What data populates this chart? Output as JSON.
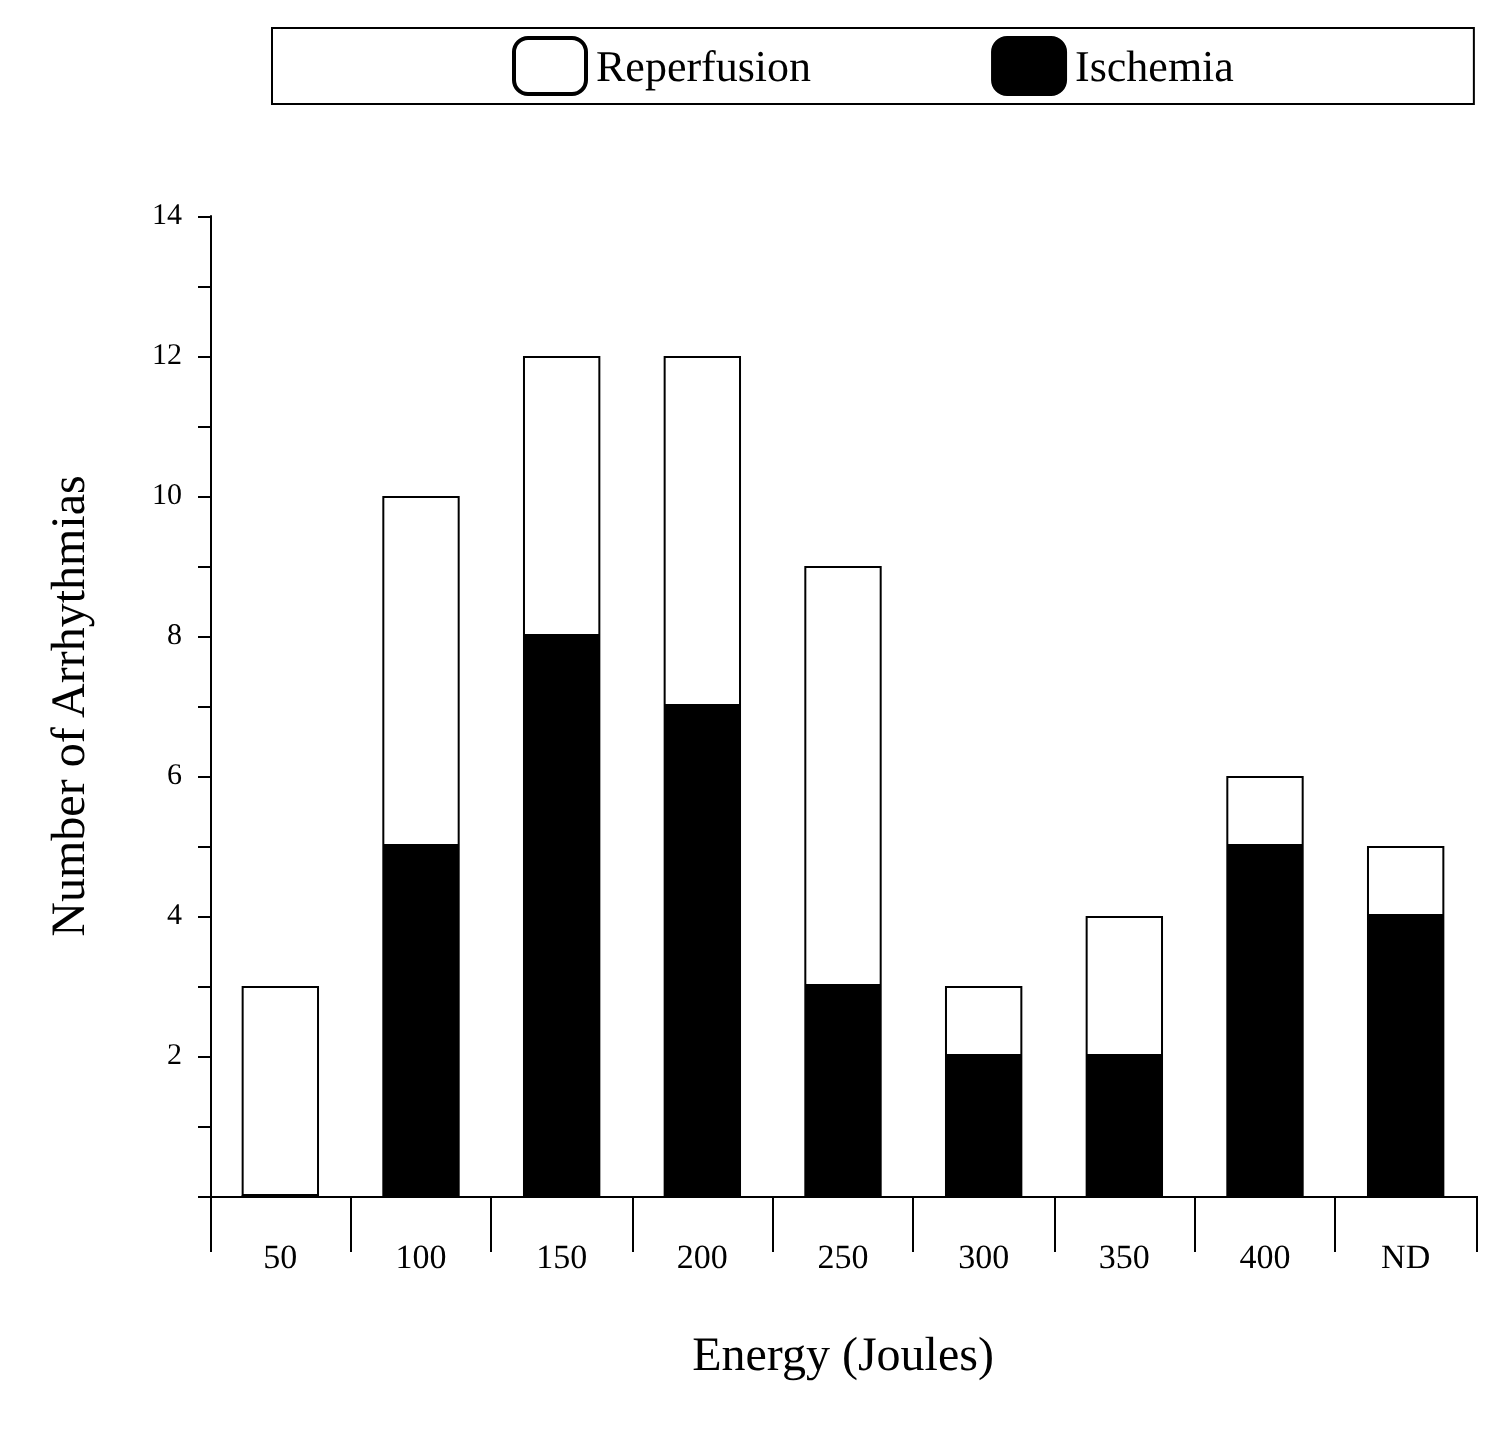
{
  "chart_data": {
    "type": "bar",
    "stacked": true,
    "xlabel": "Energy (Joules)",
    "ylabel": "Number of Arrhythmias",
    "categories": [
      "50",
      "100",
      "150",
      "200",
      "250",
      "300",
      "350",
      "400",
      "ND"
    ],
    "series": [
      {
        "name": "Ischemia",
        "color": "#000000",
        "values": [
          0,
          5,
          8,
          7,
          3,
          2,
          2,
          5,
          4
        ]
      },
      {
        "name": "Reperfusion",
        "color": "#ffffff",
        "values": [
          3,
          5,
          4,
          5,
          6,
          1,
          2,
          1,
          1
        ]
      }
    ],
    "ylim": [
      0,
      14
    ],
    "yticks": [
      {
        "value": 0,
        "label": null
      },
      {
        "value": 1,
        "label": null
      },
      2,
      {
        "value": 3,
        "label": null
      },
      4,
      {
        "value": 5,
        "label": null
      },
      6,
      {
        "value": 7,
        "label": null
      },
      8,
      {
        "value": 9,
        "label": null
      },
      10,
      {
        "value": 11,
        "label": null
      },
      12,
      {
        "value": 13,
        "label": null
      },
      14
    ],
    "grid": false,
    "legend": "top"
  }
}
